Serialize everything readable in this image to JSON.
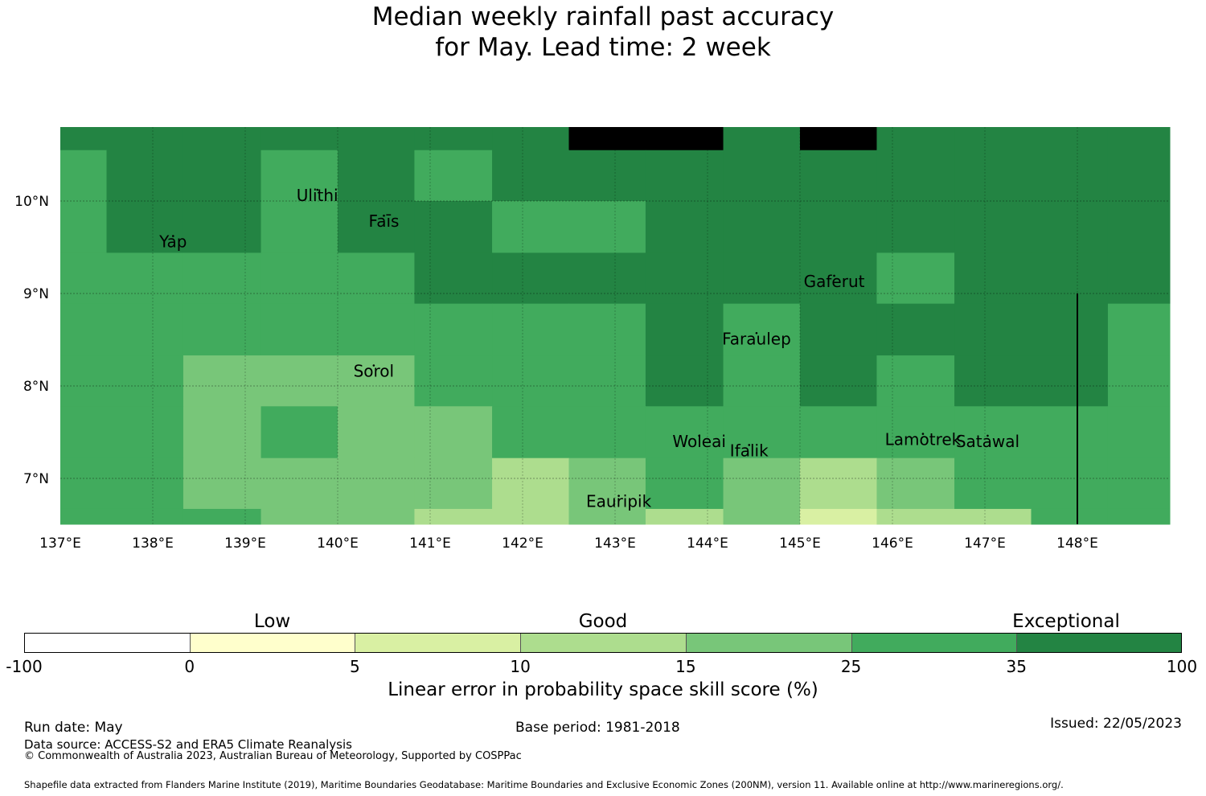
{
  "title_line1": "Median weekly rainfall past accuracy",
  "title_line2": "for May. Lead time: 2 week",
  "map": {
    "lon_range": [
      137,
      149
    ],
    "lat_range": [
      6.5,
      10.8
    ],
    "x_ticks": [
      {
        "lon": 137,
        "label": "137°E"
      },
      {
        "lon": 138,
        "label": "138°E"
      },
      {
        "lon": 139,
        "label": "139°E"
      },
      {
        "lon": 140,
        "label": "140°E"
      },
      {
        "lon": 141,
        "label": "141°E"
      },
      {
        "lon": 142,
        "label": "142°E"
      },
      {
        "lon": 143,
        "label": "143°E"
      },
      {
        "lon": 144,
        "label": "144°E"
      },
      {
        "lon": 145,
        "label": "145°E"
      },
      {
        "lon": 146,
        "label": "146°E"
      },
      {
        "lon": 147,
        "label": "147°E"
      },
      {
        "lon": 148,
        "label": "148°E"
      }
    ],
    "y_ticks": [
      {
        "lat": 10,
        "label": "10°N"
      },
      {
        "lat": 9,
        "label": "9°N"
      },
      {
        "lat": 8,
        "label": "8°N"
      },
      {
        "lat": 7,
        "label": "7°N"
      }
    ],
    "grid_lon_edges": [
      137.0,
      137.5,
      138.33,
      139.17,
      140.0,
      140.83,
      141.67,
      142.5,
      143.33,
      144.17,
      145.0,
      145.83,
      146.67,
      147.5,
      148.33,
      149.0
    ],
    "grid_lat_edges": [
      10.8,
      10.55,
      10.0,
      9.44,
      8.89,
      8.33,
      7.78,
      7.22,
      6.67,
      6.5
    ],
    "cells": [
      [
        6,
        6,
        6,
        6,
        6,
        6,
        6,
        7,
        7,
        6,
        7,
        6,
        6,
        6,
        6
      ],
      [
        5,
        6,
        6,
        5,
        6,
        5,
        6,
        6,
        6,
        6,
        6,
        6,
        6,
        6,
        6
      ],
      [
        5,
        6,
        6,
        5,
        6,
        6,
        5,
        5,
        6,
        6,
        6,
        6,
        6,
        6,
        6
      ],
      [
        5,
        5,
        5,
        5,
        5,
        6,
        6,
        6,
        6,
        6,
        6,
        5,
        6,
        6,
        6
      ],
      [
        5,
        5,
        5,
        5,
        5,
        5,
        5,
        5,
        6,
        5,
        6,
        6,
        6,
        6,
        5
      ],
      [
        5,
        5,
        4,
        4,
        4,
        5,
        5,
        5,
        6,
        5,
        6,
        5,
        6,
        6,
        5
      ],
      [
        5,
        5,
        4,
        5,
        4,
        4,
        5,
        5,
        5,
        5,
        5,
        5,
        5,
        5,
        5
      ],
      [
        5,
        5,
        4,
        4,
        4,
        4,
        3,
        4,
        5,
        4,
        3,
        4,
        5,
        5,
        5
      ],
      [
        5,
        5,
        5,
        4,
        4,
        3,
        3,
        4,
        3,
        4,
        2,
        3,
        3,
        5,
        5
      ]
    ],
    "boundary_lon": 148,
    "boundary_lat_range": [
      6.5,
      9.0
    ],
    "islands": [
      {
        "name": "Yap",
        "lon": 138.22,
        "lat": 9.5
      },
      {
        "name": "Ulithi",
        "lon": 139.78,
        "lat": 10.0
      },
      {
        "name": "Faīs",
        "lon": 140.5,
        "lat": 9.72
      },
      {
        "name": "Gaferut",
        "lon": 145.37,
        "lat": 9.07
      },
      {
        "name": "Faraulep",
        "lon": 144.53,
        "lat": 8.45
      },
      {
        "name": "Sorol",
        "lon": 140.39,
        "lat": 8.1
      },
      {
        "name": "Woleai",
        "lon": 143.91,
        "lat": 7.34
      },
      {
        "name": "Ifalik",
        "lon": 144.45,
        "lat": 7.24
      },
      {
        "name": "Lamotrek",
        "lon": 146.33,
        "lat": 7.36
      },
      {
        "name": "Satawal",
        "lon": 147.03,
        "lat": 7.34
      },
      {
        "name": "Eauripik",
        "lon": 143.04,
        "lat": 6.69
      }
    ]
  },
  "colorbar": {
    "colors": [
      "#ffffff",
      "#ffffcc",
      "#d9f0a3",
      "#addd8e",
      "#78c679",
      "#41ab5d",
      "#238443"
    ],
    "ticks": [
      "-100",
      "0",
      "5",
      "10",
      "15",
      "25",
      "35",
      "100"
    ],
    "categories": [
      "Low",
      "Good",
      "Exceptional"
    ],
    "label": "Linear error in probability space skill score (%)"
  },
  "footer": {
    "run_date": "Run date: May",
    "base_period": "Base period: 1981-2018",
    "issued": "Issued: 22/05/2023",
    "data_source": "Data source: ACCESS-S2 and ERA5 Climate Reanalysis",
    "copyright": "© Commonwealth of Australia 2023, Australian Bureau of Meteorology, Supported by COSPPac",
    "shapefile": "Shapefile data extracted from Flanders Marine Institute (2019), Maritime Boundaries Geodatabase: Maritime Boundaries and Exclusive Economic Zones (200NM), version 11. Available online at http://www.marineregions.org/."
  }
}
